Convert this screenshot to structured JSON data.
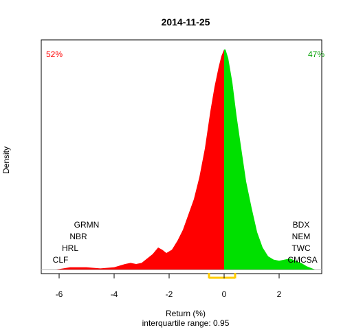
{
  "chart_data": {
    "type": "area",
    "title": "2014-11-25",
    "xlabel": "Return (%)",
    "ylabel": "Density",
    "subtitle": "interquartile range: 0.95",
    "xlim": [
      -6.65,
      3.55
    ],
    "ylim": [
      0,
      1
    ],
    "x_ticks": [
      -6,
      -4,
      -2,
      0,
      2
    ],
    "x_tick_labels": [
      "-6",
      "-4",
      "-2",
      "0",
      "2"
    ],
    "split_at": 0,
    "pct_negative": "52%",
    "pct_positive": "47%",
    "negative_color": "#ff0000",
    "positive_color": "#00e000",
    "iqr_color": "#ffcc00",
    "iqr_range": [
      -0.55,
      0.4
    ],
    "density": {
      "x": [
        -6.1,
        -5.6,
        -5.0,
        -4.5,
        -4.0,
        -3.6,
        -3.4,
        -3.2,
        -3.0,
        -2.8,
        -2.6,
        -2.4,
        -2.25,
        -2.1,
        -1.9,
        -1.7,
        -1.5,
        -1.3,
        -1.1,
        -0.9,
        -0.7,
        -0.5,
        -0.35,
        -0.2,
        -0.1,
        0.0,
        0.05,
        0.15,
        0.3,
        0.45,
        0.6,
        0.8,
        1.0,
        1.2,
        1.4,
        1.6,
        1.8,
        2.0,
        2.2,
        2.4,
        2.6,
        2.8,
        3.0,
        3.3
      ],
      "y": [
        0.0,
        0.01,
        0.01,
        0.005,
        0.01,
        0.025,
        0.03,
        0.025,
        0.03,
        0.05,
        0.07,
        0.1,
        0.09,
        0.075,
        0.09,
        0.13,
        0.18,
        0.25,
        0.32,
        0.42,
        0.55,
        0.72,
        0.83,
        0.92,
        0.97,
        1.0,
        1.0,
        0.96,
        0.85,
        0.7,
        0.57,
        0.4,
        0.28,
        0.17,
        0.1,
        0.06,
        0.045,
        0.04,
        0.045,
        0.05,
        0.04,
        0.03,
        0.015,
        0.0
      ]
    },
    "annotations_left": [
      {
        "label": "GRMN",
        "x": -5.0,
        "row": 4
      },
      {
        "label": "NBR",
        "x": -5.3,
        "row": 3
      },
      {
        "label": "HRL",
        "x": -5.6,
        "row": 2
      },
      {
        "label": "CLF",
        "x": -5.95,
        "row": 1
      }
    ],
    "annotations_right": [
      {
        "label": "BDX",
        "x": 2.8,
        "row": 4
      },
      {
        "label": "NEM",
        "x": 2.8,
        "row": 3
      },
      {
        "label": "TWC",
        "x": 2.8,
        "row": 2
      },
      {
        "label": "CMCSA",
        "x": 2.85,
        "row": 1
      }
    ]
  }
}
